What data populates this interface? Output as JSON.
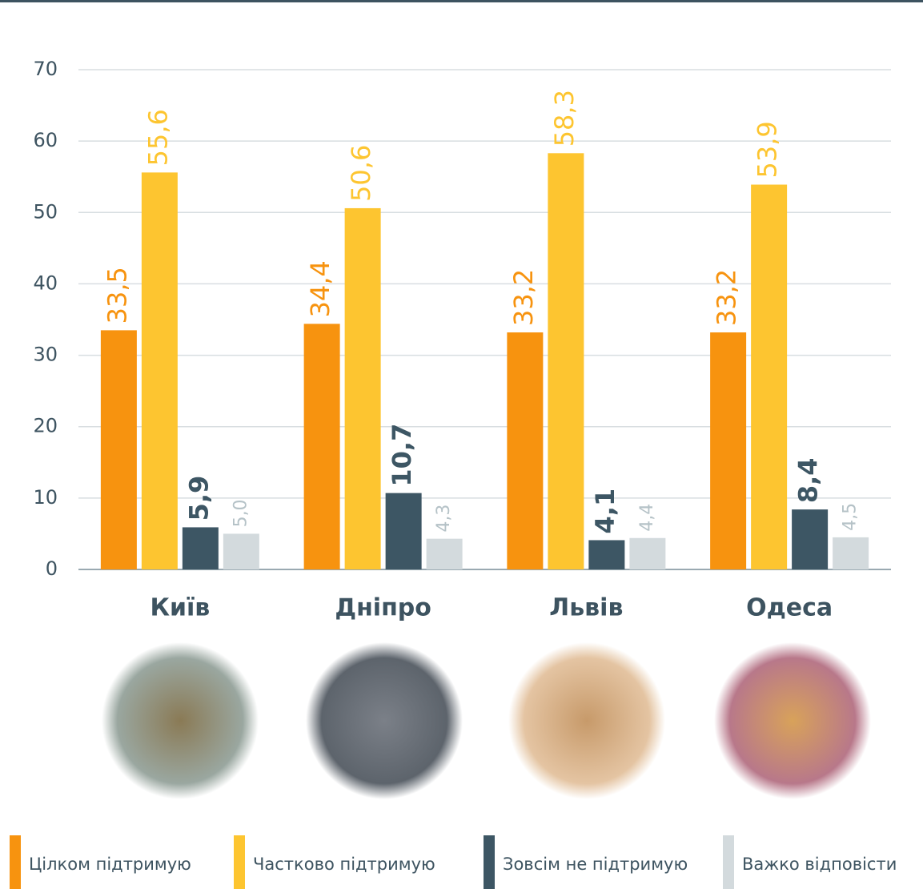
{
  "chart_data": {
    "type": "bar",
    "categories": [
      "Київ",
      "Дніпро",
      "Львів",
      "Одеса"
    ],
    "series": [
      {
        "name": "Цілком підтримую",
        "color": "#f7930f",
        "values": [
          33.5,
          34.4,
          33.2,
          33.2
        ],
        "value_labels": [
          "33,5",
          "34,4",
          "33,2",
          "33,2"
        ]
      },
      {
        "name": "Частково підтримую",
        "color": "#fdc530",
        "values": [
          55.6,
          50.6,
          58.3,
          53.9
        ],
        "value_labels": [
          "55,6",
          "50,6",
          "58,3",
          "53,9"
        ]
      },
      {
        "name": "Зовсім не підтримую",
        "color": "#3d5664",
        "values": [
          5.9,
          10.7,
          4.1,
          8.4
        ],
        "value_labels": [
          "5,9",
          "10,7",
          "4,1",
          "8,4"
        ]
      },
      {
        "name": "Важко відповісти",
        "color": "#d3dadd",
        "values": [
          5.0,
          4.3,
          4.4,
          4.5
        ],
        "value_labels": [
          "5,0",
          "4,3",
          "4,4",
          "4,5"
        ]
      }
    ],
    "ylim": [
      0,
      70
    ],
    "yticks": [
      0,
      10,
      20,
      30,
      40,
      50,
      60,
      70
    ],
    "grid": true
  }
}
